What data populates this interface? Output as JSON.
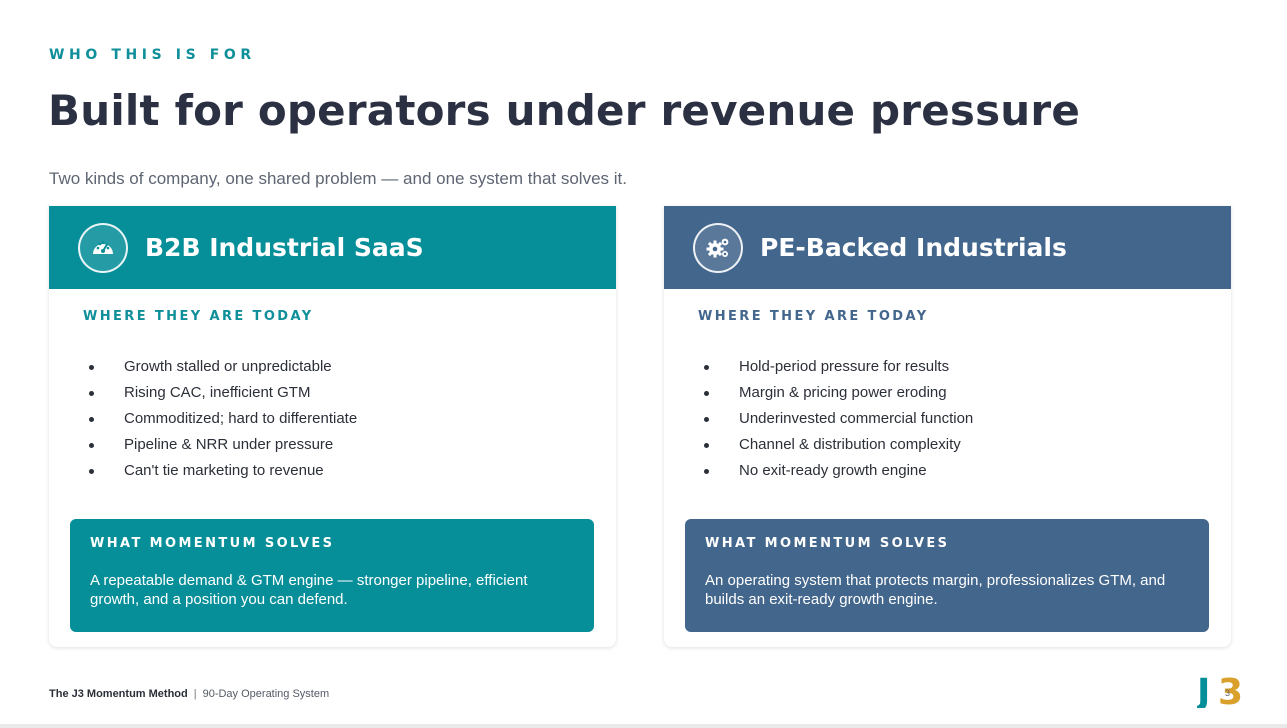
{
  "header": {
    "eyebrow": "WHO THIS IS FOR",
    "title": "Built for operators under revenue pressure",
    "subtitle": "Two kinds of company, one shared problem — and one system that solves it."
  },
  "cards": [
    {
      "title": "B2B Industrial SaaS",
      "icon": "gauge-icon",
      "section_label": "WHERE THEY ARE TODAY",
      "bullets": [
        "Growth stalled or unpredictable",
        "Rising CAC, inefficient GTM",
        "Commoditized; hard to differentiate",
        "Pipeline & NRR under pressure",
        "Can't tie marketing to revenue"
      ],
      "solves_label": "WHAT MOMENTUM SOLVES",
      "solves_text": "A repeatable demand & GTM engine — stronger pipeline, efficient growth, and a position you can defend."
    },
    {
      "title": "PE-Backed Industrials",
      "icon": "gears-icon",
      "section_label": "WHERE THEY ARE TODAY",
      "bullets": [
        "Hold-period pressure for results",
        "Margin & pricing power eroding",
        "Underinvested commercial function",
        "Channel & distribution complexity",
        "No exit-ready growth engine"
      ],
      "solves_label": "WHAT MOMENTUM SOLVES",
      "solves_text": "An operating system that protects margin, professionalizes GTM, and builds an exit-ready growth engine."
    }
  ],
  "footer": {
    "brand": "The J3 Momentum Method",
    "separator": "|",
    "tagline": "90-Day Operating System",
    "page_number": "3",
    "logo_text": "J3"
  },
  "colors": {
    "teal": "#078f99",
    "slate_blue": "#43668c",
    "logo_gold": "#d9a02c",
    "title_dark": "#2b3142"
  }
}
